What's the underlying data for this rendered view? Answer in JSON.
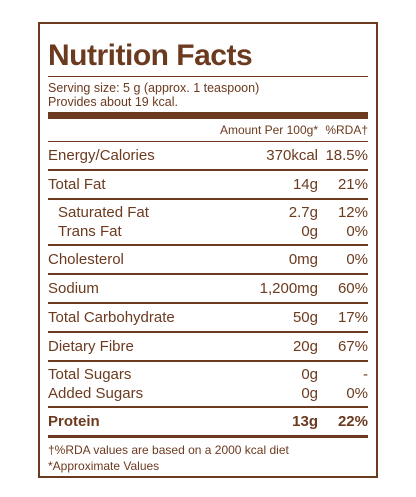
{
  "title": "Nutrition Facts",
  "serving": [
    "Serving size: 5 g (approx. 1 teaspoon)",
    "Provides about 19 kcal."
  ],
  "header": {
    "amount": "Amount Per 100g*",
    "rda": "%RDA†"
  },
  "rows": [
    [
      "Energy/Calories",
      "370kcal",
      "18.5%"
    ],
    [
      "Total Fat",
      "14g",
      "21%"
    ],
    [
      "Saturated Fat",
      "2.7g",
      "12%"
    ],
    [
      "Trans Fat",
      "0g",
      "0%"
    ],
    [
      "Cholesterol",
      "0mg",
      "0%"
    ],
    [
      "Sodium",
      "1,200mg",
      "60%"
    ],
    [
      "Total Carbohydrate",
      "50g",
      "17%"
    ],
    [
      "Dietary Fibre",
      "20g",
      "67%"
    ],
    [
      "Total Sugars",
      "0g",
      "-"
    ],
    [
      "Added Sugars",
      "0g",
      "0%"
    ],
    [
      "Protein",
      "13g",
      "22%"
    ]
  ],
  "footnotes": [
    "†%RDA values are based on a 2000 kcal diet",
    "*Approximate Values"
  ]
}
